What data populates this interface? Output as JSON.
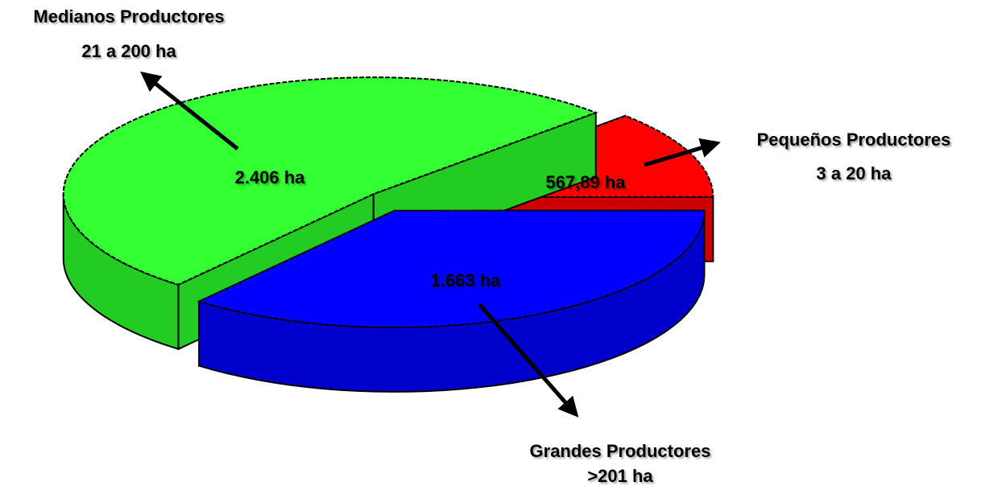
{
  "chart_data": {
    "type": "pie",
    "categories": [
      "Medianos Productores",
      "Pequeños Productores",
      "Grandes Productores"
    ],
    "ranges": [
      "21 a 200 ha",
      "3 a 20 ha",
      ">201 ha"
    ],
    "values": [
      2406,
      567.89,
      1663
    ],
    "value_labels": [
      "2.406 ha",
      "567,89 ha",
      "1.663 ha"
    ],
    "colors": [
      "#33ff33",
      "#ff0000",
      "#0000ff"
    ],
    "side_colors": [
      "#22cc22",
      "#cc0000",
      "#0000cc"
    ]
  }
}
